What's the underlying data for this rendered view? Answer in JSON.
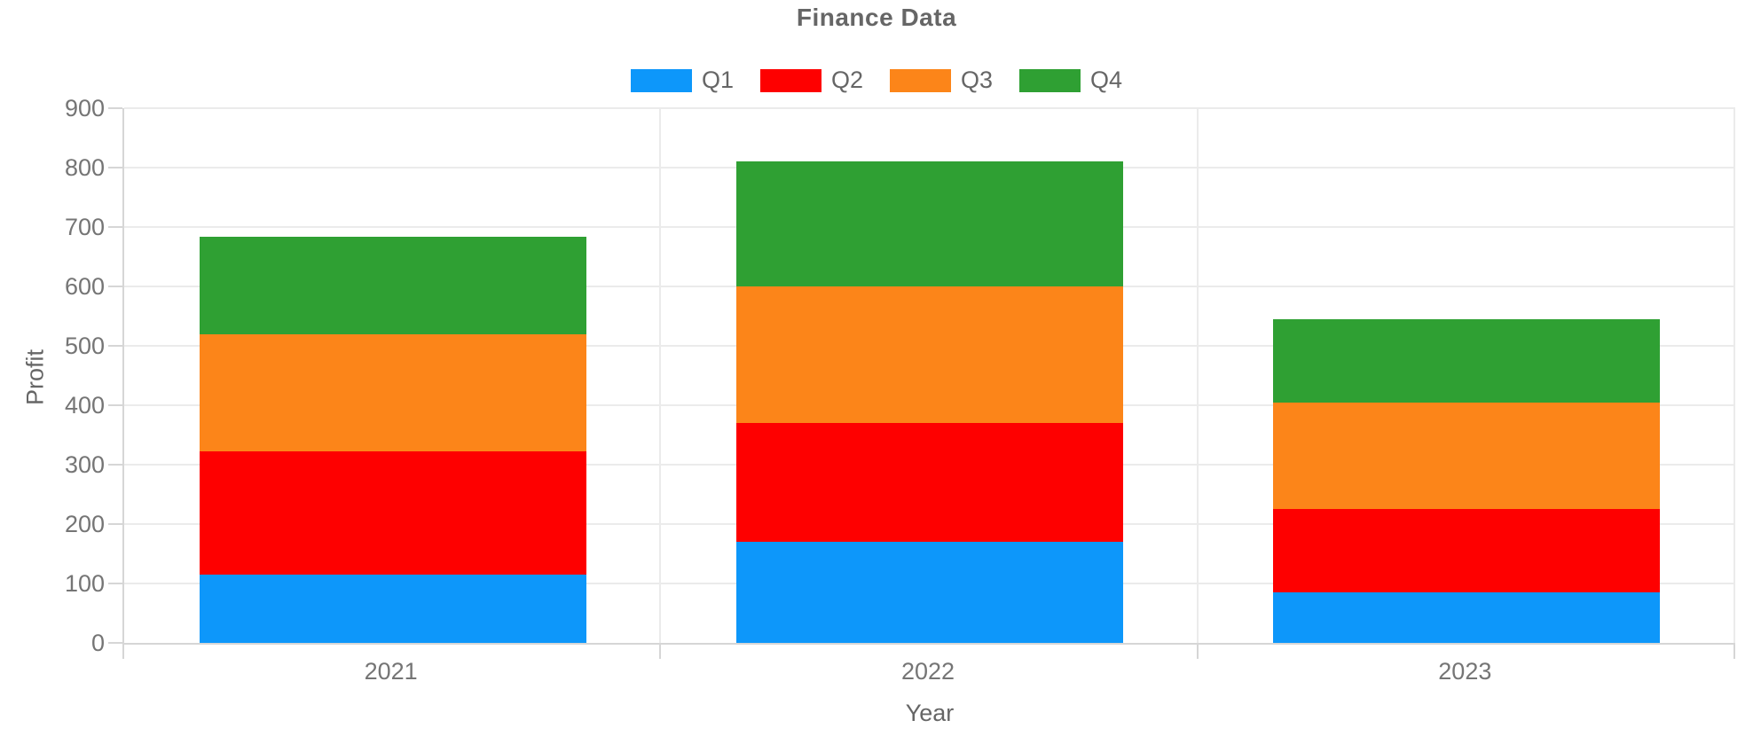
{
  "chart": {
    "title": "Finance Data",
    "x_axis_label": "Year",
    "y_axis_label": "Profit"
  },
  "chart_data": {
    "type": "bar",
    "stacked": true,
    "title": "Finance Data",
    "xlabel": "Year",
    "ylabel": "Profit",
    "categories": [
      "2021",
      "2022",
      "2023"
    ],
    "series": [
      {
        "name": "Q1",
        "color": "#0D97FA",
        "values": [
          115,
          170,
          85
        ]
      },
      {
        "name": "Q2",
        "color": "#FE0000",
        "values": [
          207,
          200,
          140
        ]
      },
      {
        "name": "Q3",
        "color": "#FC8519",
        "values": [
          198,
          230,
          180
        ]
      },
      {
        "name": "Q4",
        "color": "#2FA033",
        "values": [
          164,
          210,
          140
        ]
      }
    ],
    "stack_totals": [
      684,
      810,
      545
    ],
    "ylim": [
      0,
      900
    ],
    "ytick_step": 100,
    "yticks": [
      0,
      100,
      200,
      300,
      400,
      500,
      600,
      700,
      800,
      900
    ],
    "grid": "horizontal-value-lines+vertical-category-bounds",
    "legend_position": "top",
    "legend_entries": [
      "Q1",
      "Q2",
      "Q3",
      "Q4"
    ]
  },
  "colors": {
    "background": "#ffffff",
    "title_text": "#666666",
    "tick_text": "#757575",
    "axis_title_text": "#666666",
    "gridline": "#ebebeb",
    "axis_line": "#d6d6d6",
    "q1_blue": "#0D97FA",
    "q2_red": "#FE0000",
    "q3_orange": "#FC8519",
    "q4_green": "#2FA033"
  }
}
